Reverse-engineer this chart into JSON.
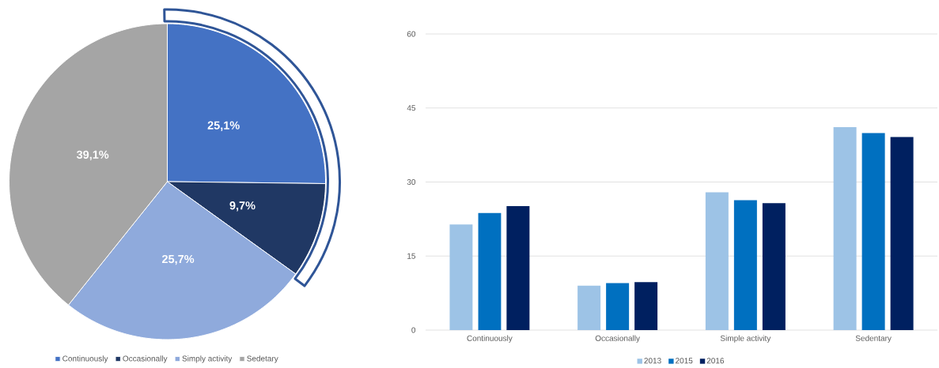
{
  "chart_data": [
    {
      "type": "pie",
      "categories": [
        "Continuously",
        "Occasionally",
        "Simply activity",
        "Sedetary"
      ],
      "values": [
        25.1,
        9.7,
        25.7,
        39.1
      ],
      "colors": [
        "#4472c4",
        "#203864",
        "#8faadc",
        "#a5a5a5"
      ],
      "value_labels": [
        "25,1%",
        "9,7%",
        "25,7%",
        "39,1%"
      ],
      "legend": "bottom"
    },
    {
      "type": "bar",
      "categories": [
        "Continuously",
        "Occasionally",
        "Simple activity",
        "Sedentary"
      ],
      "series": [
        {
          "name": "2013",
          "color": "#9dc3e6",
          "values": [
            21.4,
            9.0,
            27.9,
            41.1
          ]
        },
        {
          "name": "2015",
          "color": "#0070c0",
          "values": [
            23.7,
            9.5,
            26.3,
            39.9
          ]
        },
        {
          "name": "2016",
          "color": "#002060",
          "values": [
            25.1,
            9.7,
            25.7,
            39.1
          ]
        }
      ],
      "ylim": [
        0,
        60
      ],
      "yticks": [
        0,
        15,
        30,
        45,
        60
      ],
      "grid": "y",
      "legend": "bottom"
    }
  ]
}
